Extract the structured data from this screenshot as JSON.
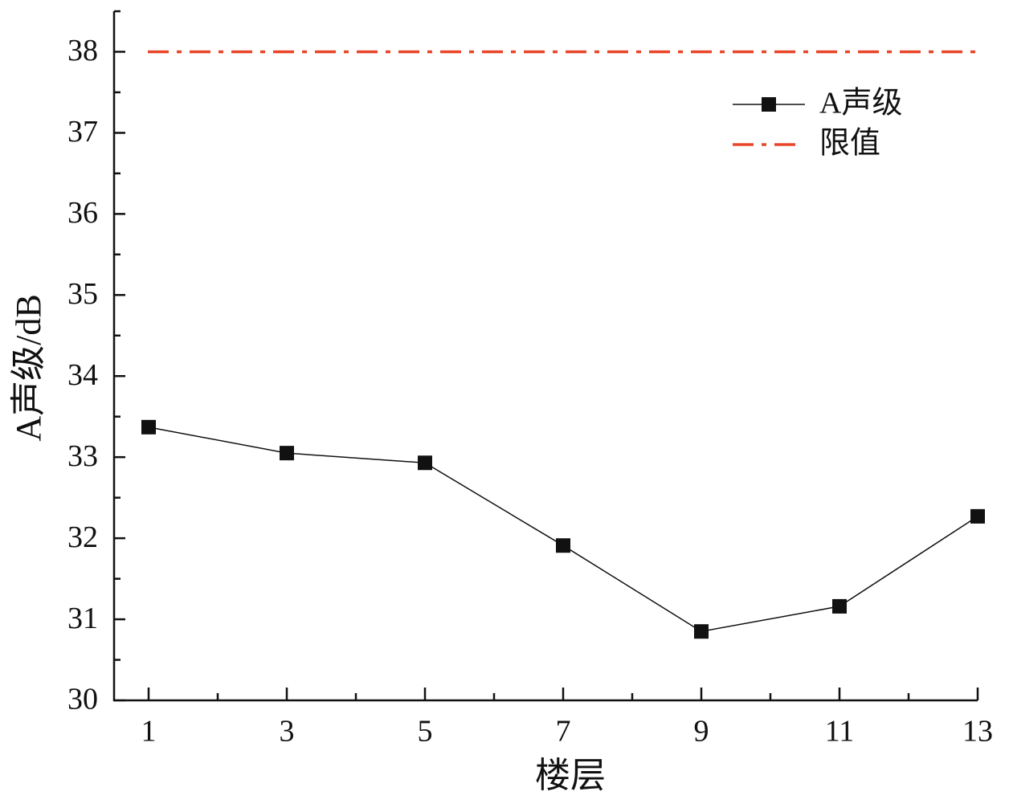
{
  "chart_data": {
    "type": "line",
    "x_label": "楼层",
    "y_label": "A声级/dB",
    "x": [
      1,
      3,
      5,
      7,
      9,
      11,
      13
    ],
    "series": [
      {
        "name": "A声级",
        "color": "#111111",
        "values": [
          33.37,
          33.05,
          32.93,
          31.91,
          30.85,
          31.16,
          32.27
        ]
      }
    ],
    "reference_lines": [
      {
        "name": "限值",
        "color": "#e8472a",
        "value": 38
      }
    ],
    "xlim": [
      0.5,
      13
    ],
    "ylim": [
      30,
      38.5
    ],
    "xticks": [
      1,
      3,
      5,
      7,
      9,
      11,
      13
    ],
    "yticks": [
      30,
      31,
      32,
      33,
      34,
      35,
      36,
      37,
      38
    ],
    "xminorticks": [
      2,
      4,
      6,
      8,
      10,
      12
    ],
    "yminorticks": [
      30.5,
      31.5,
      32.5,
      33.5,
      34.5,
      35.5,
      36.5,
      37.5,
      38.5
    ],
    "legend": "upper right",
    "grid": false
  }
}
